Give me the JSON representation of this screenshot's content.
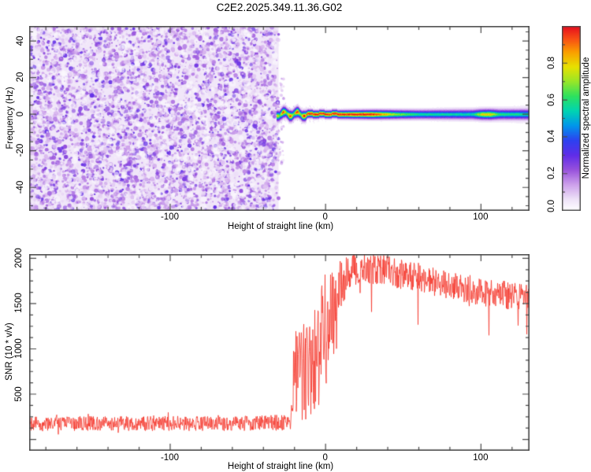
{
  "title": "C2E2.2025.349.11.36.G02",
  "chart_data": [
    {
      "type": "heatmap",
      "panel": "spectrogram",
      "title": "C2E2.2025.349.11.36.G02",
      "xlabel": "Height of straight line (km)",
      "ylabel": "Frequency (Hz)",
      "xlim": [
        -190.5,
        131.5
      ],
      "ylim": [
        -53,
        48
      ],
      "x_ticks": [
        -100,
        0,
        100
      ],
      "x_minor_step": 20,
      "y_ticks": [
        -40,
        -20,
        0,
        20,
        40
      ],
      "y_minor_step": 5,
      "grid": false,
      "colorbar": {
        "label": "Normalized spectral amplitude",
        "ticks": [
          0.0,
          0.2,
          0.4,
          0.6,
          0.8
        ],
        "range": [
          0,
          1
        ],
        "colormap": "rainbow-white-to-red"
      },
      "noise_region": {
        "x_range": [
          -190.5,
          -31.5
        ],
        "amplitude_range": [
          0,
          0.28
        ],
        "description": "speckled low-amplitude purple noise filling full frequency range"
      },
      "signal_band": {
        "start_km": -31.5,
        "center_hz": 0,
        "core_amplitude_profile": [
          [
            -31.5,
            0.55
          ],
          [
            -30.5,
            0.95
          ],
          [
            -13,
            1.0
          ],
          [
            30,
            1.0
          ],
          [
            45,
            0.72
          ],
          [
            60,
            0.58
          ],
          [
            95,
            0.56
          ],
          [
            101,
            0.8
          ],
          [
            106,
            0.82
          ],
          [
            112,
            0.6
          ],
          [
            131.5,
            0.57
          ]
        ],
        "sigma_hz": [
          [
            -31.5,
            1.6
          ],
          [
            0,
            1.4
          ],
          [
            40,
            1.7
          ],
          [
            131.5,
            2.1
          ]
        ],
        "halo_hz": [
          [
            -31.5,
            4.6
          ],
          [
            0,
            3.7
          ],
          [
            60,
            4.6
          ],
          [
            131.5,
            6.2
          ]
        ],
        "bead_region_km": [
          -31.5,
          -12
        ],
        "bead_period_km": 4.5,
        "bead_wobble_hz": 1.2
      }
    },
    {
      "type": "line",
      "panel": "snr",
      "xlabel": "Height of straight line (km)",
      "ylabel": "SNR (10 * v/v)",
      "color": "#f5362b",
      "xlim": [
        -190.5,
        131.5
      ],
      "ylim": [
        -130,
        2043
      ],
      "x_ticks": [
        -100,
        0,
        100
      ],
      "x_minor_step": 20,
      "y_ticks": [
        500,
        1000,
        1500,
        2000
      ],
      "y_minor_step": 125,
      "grid": false,
      "envelope": [
        {
          "x": -190,
          "mean": 170,
          "amp": 80
        },
        {
          "x": -100,
          "mean": 172,
          "amp": 82
        },
        {
          "x": -40,
          "mean": 175,
          "amp": 85
        },
        {
          "x": -23,
          "mean": 185,
          "amp": 95
        },
        {
          "x": -21.5,
          "mean": 260,
          "amp": 130
        },
        {
          "x": -20.3,
          "mean": 750,
          "amp": 330
        },
        {
          "x": -19,
          "mean": 950,
          "amp": 350
        },
        {
          "x": -17,
          "mean": 820,
          "amp": 390
        },
        {
          "x": -14,
          "mean": 950,
          "amp": 430
        },
        {
          "x": -11,
          "mean": 870,
          "amp": 430
        },
        {
          "x": -8,
          "mean": 1060,
          "amp": 450
        },
        {
          "x": -5,
          "mean": 1010,
          "amp": 430
        },
        {
          "x": -2,
          "mean": 1210,
          "amp": 500
        },
        {
          "x": 0,
          "mean": 1260,
          "amp": 520
        },
        {
          "x": 2,
          "mean": 1320,
          "amp": 480
        },
        {
          "x": 5,
          "mean": 1500,
          "amp": 400
        },
        {
          "x": 8,
          "mean": 1620,
          "amp": 320
        },
        {
          "x": 12,
          "mean": 1760,
          "amp": 250
        },
        {
          "x": 18,
          "mean": 1860,
          "amp": 200
        },
        {
          "x": 25,
          "mean": 1890,
          "amp": 180
        },
        {
          "x": 35,
          "mean": 1870,
          "amp": 175
        },
        {
          "x": 45,
          "mean": 1830,
          "amp": 170
        },
        {
          "x": 60,
          "mean": 1780,
          "amp": 165
        },
        {
          "x": 75,
          "mean": 1705,
          "amp": 160
        },
        {
          "x": 90,
          "mean": 1660,
          "amp": 160
        },
        {
          "x": 105,
          "mean": 1620,
          "amp": 160
        },
        {
          "x": 120,
          "mean": 1585,
          "amp": 158
        },
        {
          "x": 131,
          "mean": 1560,
          "amp": 155
        }
      ]
    }
  ]
}
